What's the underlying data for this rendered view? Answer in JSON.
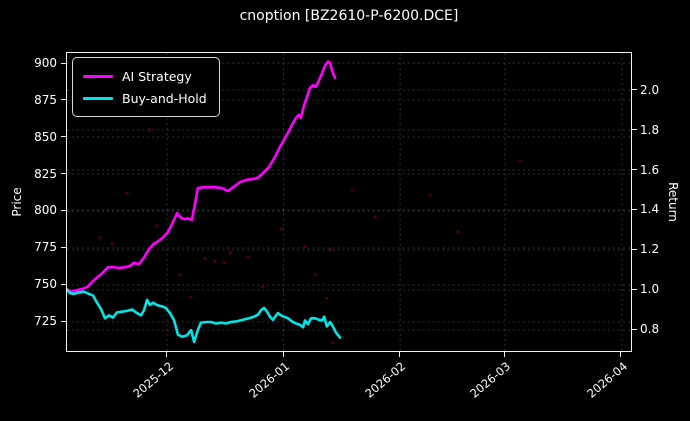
{
  "title": "cnoption [BZ2610-P-6200.DCE]",
  "colors": {
    "background": "#000000",
    "frame": "#f0f0f0",
    "text": "#ffffff",
    "grid": "#9e9e9e",
    "ai_strategy": "#ff00ff",
    "buy_and_hold": "#00e5e5",
    "signal_dots": "#8b0000"
  },
  "chart_data": {
    "type": "line",
    "title": "cnoption [BZ2610-P-6200.DCE]",
    "grid": true,
    "legend_position": "upper-left",
    "x_axis": {
      "span_days": 150,
      "tick_days": [
        26.6,
        57.6,
        88.6,
        116.5,
        147.6
      ],
      "tick_labels": [
        "2025-12",
        "2026-01",
        "2026-02",
        "2026-03",
        "2026-04"
      ]
    },
    "y_left": {
      "label": "Price",
      "ticks": [
        725,
        750,
        775,
        800,
        825,
        850,
        875,
        900
      ],
      "range": [
        705.4,
        906.8
      ],
      "decimals": 0
    },
    "y_right": {
      "label": "Return",
      "ticks": [
        0.8,
        1.0,
        1.2,
        1.4,
        1.6,
        1.8,
        2.0
      ],
      "range": [
        0.695,
        2.185
      ],
      "decimals": 1
    },
    "series": [
      {
        "name": "AI Strategy",
        "color": "#ff00ff",
        "axis": "left",
        "points": [
          [
            0,
            747
          ],
          [
            1.1,
            745.5
          ],
          [
            2.7,
            746.5
          ],
          [
            4.3,
            747.5
          ],
          [
            5.6,
            749
          ],
          [
            6.9,
            752.5
          ],
          [
            8.2,
            755.5
          ],
          [
            9.6,
            758.5
          ],
          [
            10.9,
            762
          ],
          [
            12.5,
            762
          ],
          [
            13.8,
            761.5
          ],
          [
            15.4,
            762
          ],
          [
            16.8,
            763
          ],
          [
            17.8,
            765
          ],
          [
            19.1,
            764
          ],
          [
            20.5,
            768.5
          ],
          [
            21.8,
            774
          ],
          [
            22.9,
            777.5
          ],
          [
            24.2,
            779.5
          ],
          [
            25.5,
            782
          ],
          [
            26.9,
            786
          ],
          [
            27.9,
            791
          ],
          [
            29.3,
            798.5
          ],
          [
            30.1,
            796
          ],
          [
            31.1,
            794.5
          ],
          [
            32.2,
            795
          ],
          [
            33.2,
            794
          ],
          [
            34,
            804
          ],
          [
            34.8,
            815.5
          ],
          [
            36.4,
            816
          ],
          [
            38,
            816
          ],
          [
            39.6,
            816
          ],
          [
            41.2,
            815.5
          ],
          [
            42.8,
            813.5
          ],
          [
            44.4,
            816.5
          ],
          [
            46,
            819.5
          ],
          [
            47.6,
            821
          ],
          [
            49.2,
            821.5
          ],
          [
            50.8,
            822.5
          ],
          [
            52.1,
            825.5
          ],
          [
            53.5,
            829
          ],
          [
            54.5,
            833
          ],
          [
            55.6,
            838
          ],
          [
            56.6,
            843
          ],
          [
            57.7,
            848
          ],
          [
            58.8,
            853
          ],
          [
            59.8,
            858
          ],
          [
            60.9,
            863
          ],
          [
            61.7,
            865
          ],
          [
            62.2,
            863
          ],
          [
            63,
            871
          ],
          [
            63.8,
            877
          ],
          [
            64.6,
            883
          ],
          [
            65.4,
            885
          ],
          [
            66.2,
            884
          ],
          [
            66.8,
            887
          ],
          [
            67.8,
            893
          ],
          [
            68.6,
            898
          ],
          [
            69.4,
            901
          ],
          [
            70,
            900
          ],
          [
            70.5,
            895
          ],
          [
            71.3,
            890
          ]
        ]
      },
      {
        "name": "Buy-and-Hold",
        "color": "#00e5e5",
        "axis": "left",
        "points": [
          [
            0,
            747
          ],
          [
            0.8,
            744.5
          ],
          [
            1.9,
            744
          ],
          [
            3.2,
            745
          ],
          [
            4.5,
            745.5
          ],
          [
            5.9,
            744
          ],
          [
            6.9,
            743
          ],
          [
            8,
            738
          ],
          [
            9,
            734
          ],
          [
            10.1,
            727.5
          ],
          [
            11.2,
            729.5
          ],
          [
            12.2,
            728
          ],
          [
            13.3,
            731.5
          ],
          [
            14.6,
            732
          ],
          [
            16,
            732.5
          ],
          [
            17.3,
            733.5
          ],
          [
            18.6,
            731
          ],
          [
            19.7,
            729.5
          ],
          [
            20.5,
            733
          ],
          [
            21.3,
            740
          ],
          [
            22.1,
            736.5
          ],
          [
            22.9,
            738
          ],
          [
            23.9,
            736.5
          ],
          [
            25.3,
            735.5
          ],
          [
            26.3,
            734.5
          ],
          [
            27.4,
            731
          ],
          [
            28.5,
            726
          ],
          [
            29.5,
            716.5
          ],
          [
            30.6,
            715
          ],
          [
            31.9,
            716
          ],
          [
            33,
            719.5
          ],
          [
            33.8,
            711.5
          ],
          [
            34.8,
            719.5
          ],
          [
            35.6,
            724.5
          ],
          [
            37,
            725
          ],
          [
            38.3,
            725
          ],
          [
            39.6,
            724
          ],
          [
            41,
            724.5
          ],
          [
            42.3,
            724
          ],
          [
            43.6,
            725
          ],
          [
            45.2,
            725.5
          ],
          [
            46.8,
            726.5
          ],
          [
            48.4,
            727.5
          ],
          [
            49.7,
            728.5
          ],
          [
            50.8,
            730
          ],
          [
            51.6,
            733
          ],
          [
            52.4,
            734.5
          ],
          [
            53.2,
            732
          ],
          [
            54,
            728.5
          ],
          [
            54.8,
            726.5
          ],
          [
            55.6,
            729.5
          ],
          [
            56.1,
            731
          ],
          [
            56.9,
            729.5
          ],
          [
            57.7,
            728.5
          ],
          [
            58.8,
            727.5
          ],
          [
            59.8,
            725.5
          ],
          [
            60.9,
            724
          ],
          [
            62,
            723
          ],
          [
            62.8,
            721.5
          ],
          [
            63.3,
            726
          ],
          [
            64.1,
            723.5
          ],
          [
            64.9,
            727.5
          ],
          [
            66,
            727.5
          ],
          [
            67,
            726.5
          ],
          [
            67.8,
            726
          ],
          [
            68.4,
            728.5
          ],
          [
            69.1,
            722
          ],
          [
            70,
            725
          ],
          [
            70.7,
            722
          ],
          [
            71.5,
            718
          ],
          [
            72.6,
            714.5
          ]
        ]
      }
    ],
    "markers": {
      "name": "signal-dots",
      "color": "#8b0000",
      "points": [
        [
          8.8,
          782
        ],
        [
          12,
          778
        ],
        [
          16,
          812
        ],
        [
          22.1,
          855
        ],
        [
          24,
          790
        ],
        [
          30,
          757
        ],
        [
          33,
          742
        ],
        [
          36.7,
          768
        ],
        [
          39.4,
          766
        ],
        [
          41.8,
          765
        ],
        [
          43.4,
          772
        ],
        [
          48.1,
          769
        ],
        [
          52,
          749
        ],
        [
          57,
          788
        ],
        [
          63.3,
          776
        ],
        [
          66,
          757
        ],
        [
          69.1,
          741
        ],
        [
          70,
          774
        ],
        [
          70.7,
          711
        ],
        [
          75.8,
          814
        ],
        [
          82,
          796
        ],
        [
          96.5,
          811
        ],
        [
          104,
          786
        ],
        [
          120.5,
          834
        ]
      ]
    }
  }
}
